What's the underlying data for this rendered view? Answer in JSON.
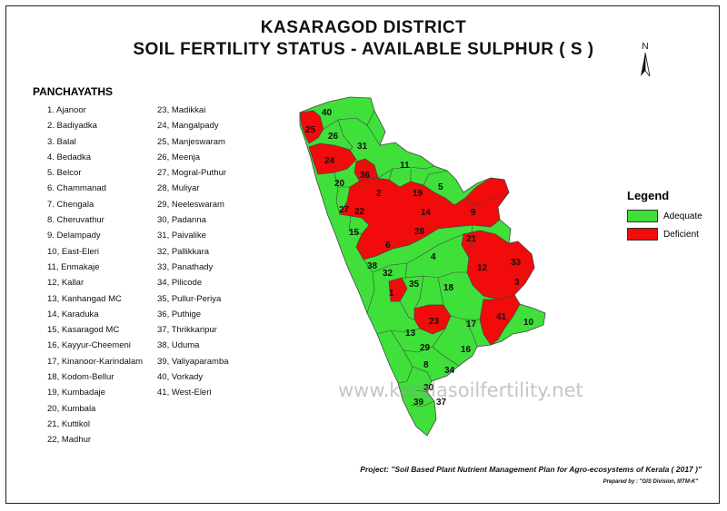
{
  "title_line1": "KASARAGOD DISTRICT",
  "title_line2": "SOIL FERTILITY STATUS - AVAILABLE SULPHUR ( S )",
  "north_label": "N",
  "panchayaths_heading": "PANCHAYATHS",
  "panchayaths_left": [
    "1. Ajanoor",
    "2. Badiyadka",
    "3. Balal",
    "4. Bedadka",
    "5. Belcor",
    "6. Chammanad",
    "7. Chengala",
    "8. Cheruvathur",
    "9. Delampady",
    "10, East-Eleri",
    "11, Enmakaje",
    "12, Kallar",
    "13, Kanhangad MC",
    "14, Karaduka",
    "15, Kasaragod MC",
    "16, Kayyur-Cheemeni",
    "17, Kinanoor-Karindalam",
    "18, Kodom-Bellur",
    "19, Kumbadaje",
    "20, Kumbala",
    "21, Kuttikol",
    "22, Madhur"
  ],
  "panchayaths_right": [
    "23, Madikkai",
    "24, Mangalpady",
    "25, Manjeswaram",
    "26, Meenja",
    "27, Mogral-Puthur",
    "28, Muliyar",
    "29, Neeleswaram",
    "30, Padanna",
    "31, Paivalike",
    "32, Pallikkara",
    "33, Panathady",
    "34, Pilicode",
    "35, Pullur-Periya",
    "36, Puthige",
    "37, Thrikkaripur",
    "38, Uduma",
    "39, Valiyaparamba",
    "40, Vorkady",
    "41, West-Eleri"
  ],
  "legend": {
    "title": "Legend",
    "items": [
      {
        "label": "Adequate",
        "color": "#3fe03a"
      },
      {
        "label": "Deficient",
        "color": "#f20b0b"
      }
    ]
  },
  "map_labels": {
    "40": "40",
    "25": "25",
    "26": "26",
    "31": "31",
    "24": "24",
    "36": "36",
    "11": "11",
    "20": "20",
    "2": "2",
    "19": "19",
    "5": "5",
    "27": "27",
    "22": "22",
    "14": "14",
    "9": "9",
    "15": "15",
    "28": "28",
    "6": "6",
    "21": "21",
    "4": "4",
    "38": "38",
    "32": "32",
    "12": "12",
    "33": "33",
    "35": "35",
    "18": "18",
    "3": "3",
    "1": "1",
    "23": "23",
    "41": "41",
    "10": "10",
    "17": "17",
    "13": "13",
    "29": "29",
    "16": "16",
    "8": "8",
    "34": "34",
    "30": "30",
    "39": "39",
    "37": "37"
  },
  "watermark": "www.keralasoilfertility.net",
  "project": "Project: \"Soil Based Plant Nutrient Management Plan for Agro-ecosystems of Kerala ( 2017 )\"",
  "prepared_by": "Prepared by : \"GIS Division, IIITM-K\""
}
